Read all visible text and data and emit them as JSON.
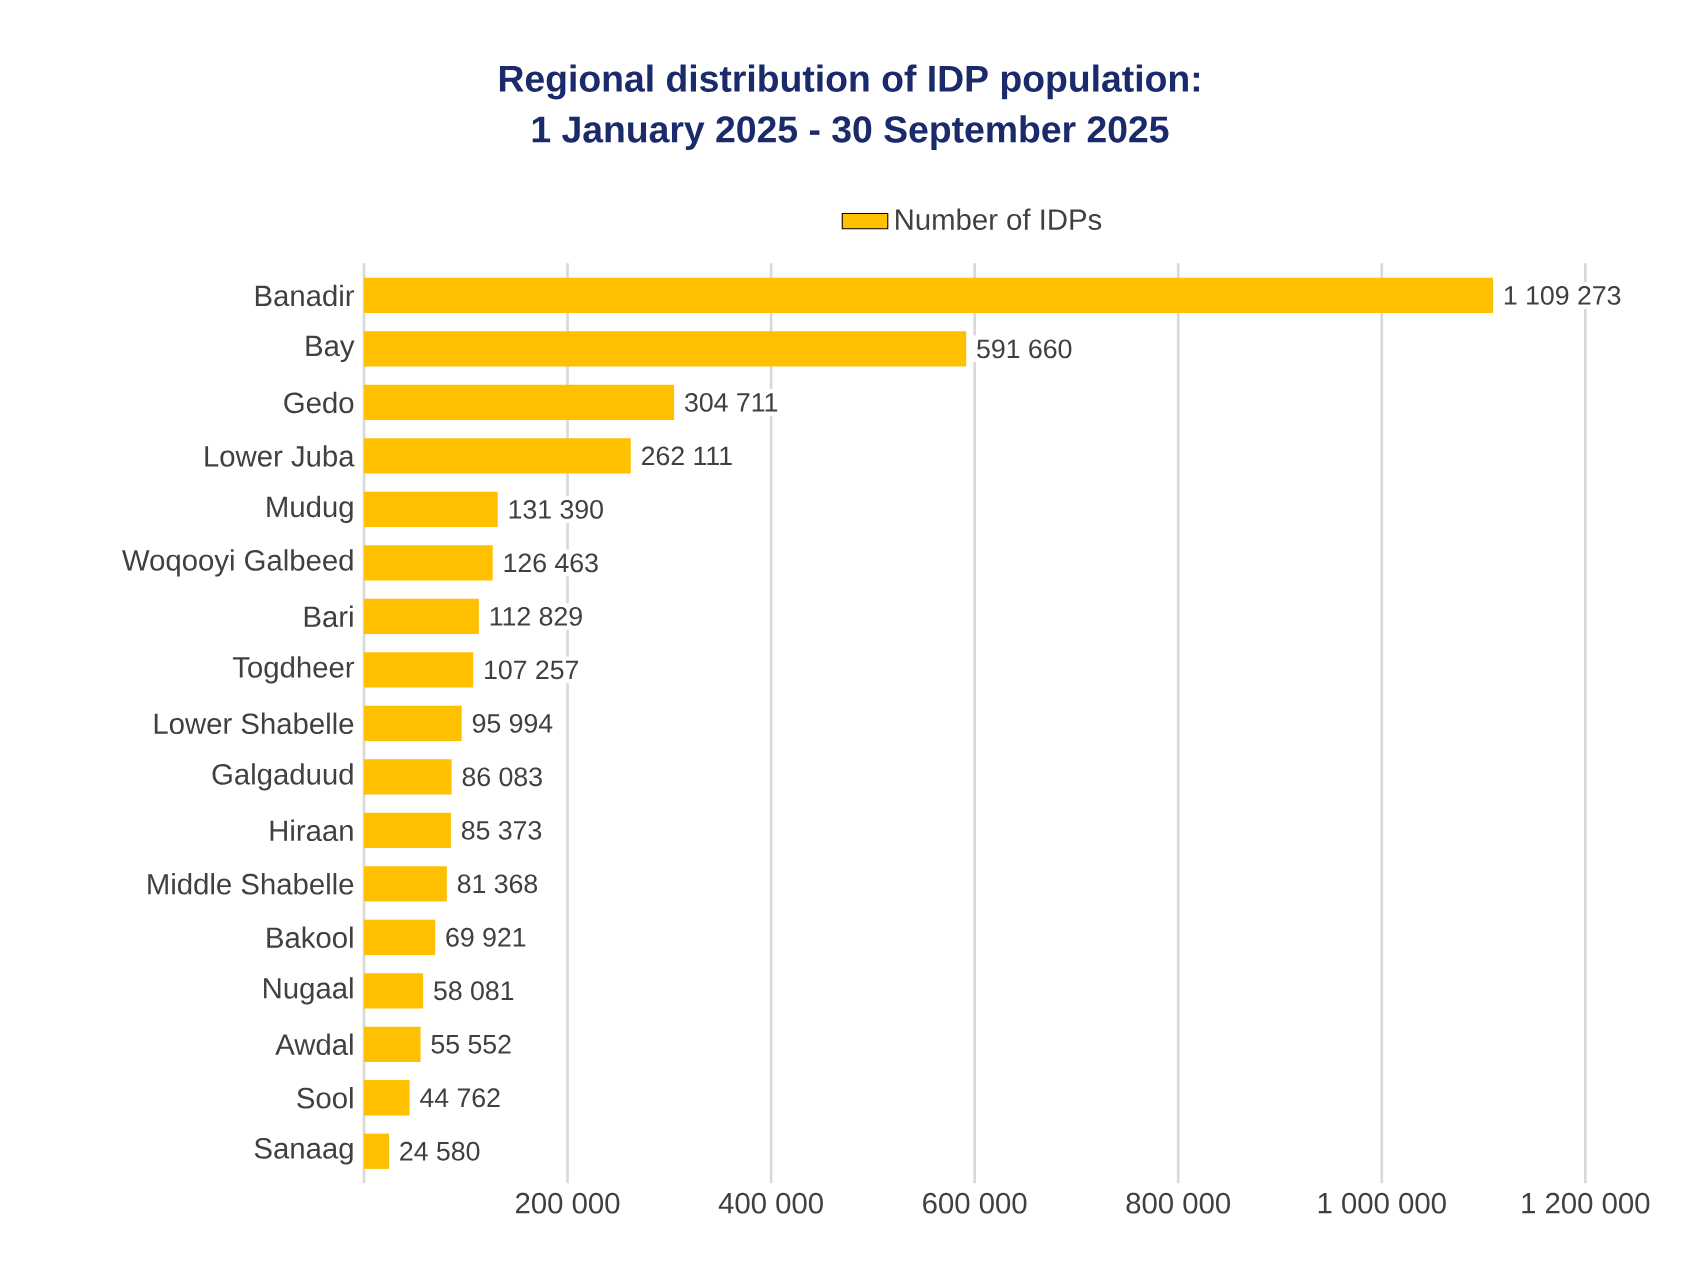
{
  "chart_data": {
    "type": "bar",
    "orientation": "horizontal",
    "title": "Regional distribution of IDP population:",
    "subtitle": "1 January 2025 - 30 September 2025",
    "categories": [
      "Banadir",
      "Bay",
      "Gedo",
      "Lower Juba",
      "Mudug",
      "Woqooyi Galbeed",
      "Bari",
      "Togdheer",
      "Lower Shabelle",
      "Galgaduud",
      "Hiraan",
      "Middle Shabelle",
      "Bakool",
      "Nugaal",
      "Awdal",
      "Sool",
      "Sanaag"
    ],
    "series": [
      {
        "name": "Number of IDPs",
        "color": "#ffc000",
        "values": [
          1109273,
          591660,
          304711,
          262111,
          131390,
          126463,
          112829,
          107257,
          95994,
          86083,
          85373,
          81368,
          69921,
          58081,
          55552,
          44762,
          24580
        ],
        "value_labels": [
          "1 109 273",
          "591 660",
          "304 711",
          "262 111",
          "131 390",
          "126 463",
          "112 829",
          "107 257",
          "95 994",
          "86 083",
          "85 373",
          "81 368",
          "69 921",
          "58 081",
          "55 552",
          "44 762",
          "24 580"
        ]
      }
    ],
    "xlim": [
      0,
      1200000
    ],
    "xticks": [
      {
        "value": 200000,
        "label": "200 000"
      },
      {
        "value": 400000,
        "label": "400 000"
      },
      {
        "value": 600000,
        "label": "600 000"
      },
      {
        "value": 800000,
        "label": "800 000"
      },
      {
        "value": 1000000,
        "label": "1 000 000"
      },
      {
        "value": 1200000,
        "label": "1 200 000"
      }
    ],
    "grid": "x",
    "legend": "top"
  }
}
